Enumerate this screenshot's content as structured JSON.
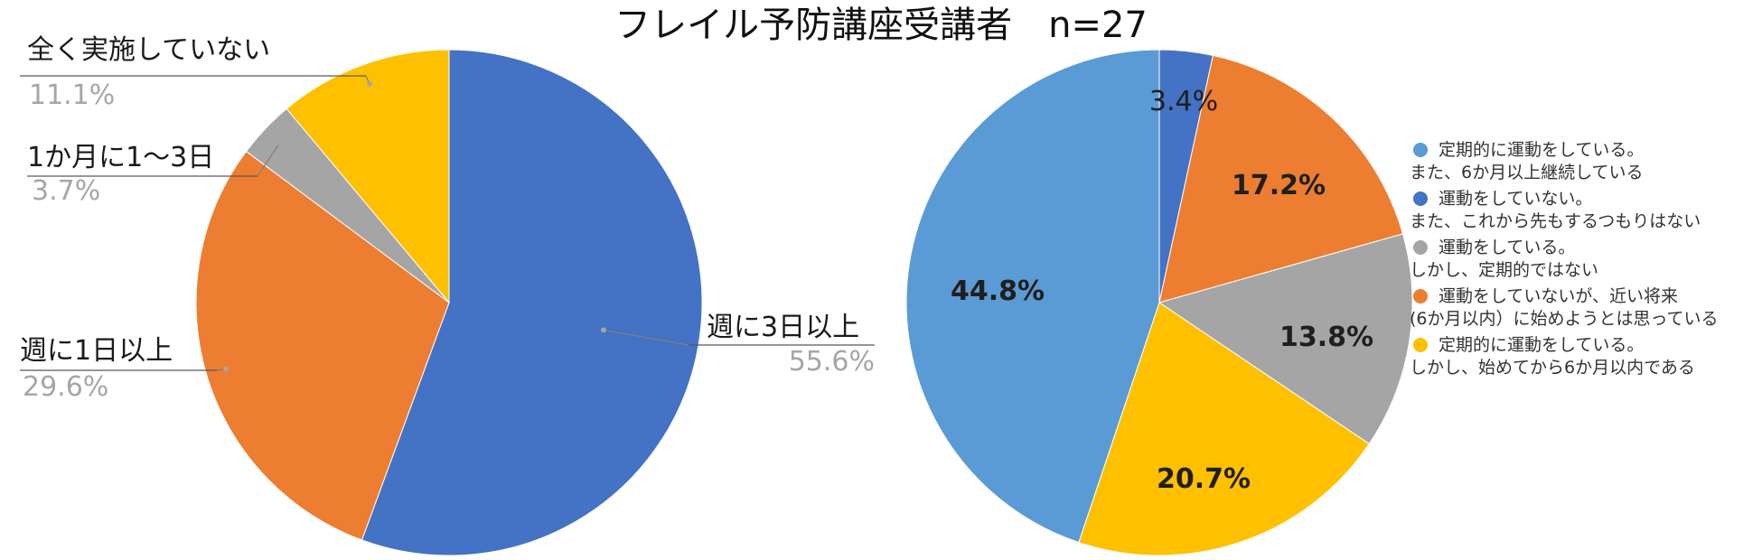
{
  "title": "フレイル予防講座受講者　n=27",
  "chart_data": [
    {
      "type": "pie",
      "title": "",
      "slices": [
        {
          "label": "週に3日以上",
          "value": 55.6,
          "value_label": "55.6%",
          "color": "#4472C4"
        },
        {
          "label": "週に1日以上",
          "value": 29.6,
          "value_label": "29.6%",
          "color": "#ED7D31"
        },
        {
          "label": "1か月に1〜3日",
          "value": 3.7,
          "value_label": "3.7%",
          "color": "#A5A5A5"
        },
        {
          "label": "全く実施していない",
          "value": 11.1,
          "value_label": "11.1%",
          "color": "#FFC000"
        }
      ],
      "legend": "none"
    },
    {
      "type": "pie",
      "title": "",
      "slices": [
        {
          "label": "運動をしていない。\nまた、これから先もするつもりはない",
          "value": 3.4,
          "value_label": "3.4%",
          "color": "#4472C4"
        },
        {
          "label": "運動をしていないが、近い将来\n(6か月以内）に始めようとは思っている",
          "value": 17.2,
          "value_label": "17.2%",
          "color": "#ED7D31"
        },
        {
          "label": "運動をしている。\nしかし、定期的ではない",
          "value": 13.8,
          "value_label": "13.8%",
          "color": "#A5A5A5"
        },
        {
          "label": "定期的に運動をしている。\nしかし、始めてから6か月以内である",
          "value": 20.7,
          "value_label": "20.7%",
          "color": "#FFC000"
        },
        {
          "label": "定期的に運動をしている。\nまた、6か月以上継続している",
          "value": 44.8,
          "value_label": "44.8%",
          "color": "#5B9BD5"
        }
      ],
      "legend_order": [
        {
          "line1": "定期的に運動をしている。",
          "line2": "また、6か月以上継続している",
          "color": "#5B9BD5"
        },
        {
          "line1": "運動をしていない。",
          "line2": "また、これから先もするつもりはない",
          "color": "#4472C4"
        },
        {
          "line1": "運動をしている。",
          "line2": "しかし、定期的ではない",
          "color": "#A5A5A5"
        },
        {
          "line1": "運動をしていないが、近い将来",
          "line2": "(6か月以内）に始めようとは思っている",
          "color": "#ED7D31"
        },
        {
          "line1": "定期的に運動をしている。",
          "line2": "しかし、始めてから6か月以内である",
          "color": "#FFC000"
        }
      ],
      "legend": "right"
    }
  ]
}
